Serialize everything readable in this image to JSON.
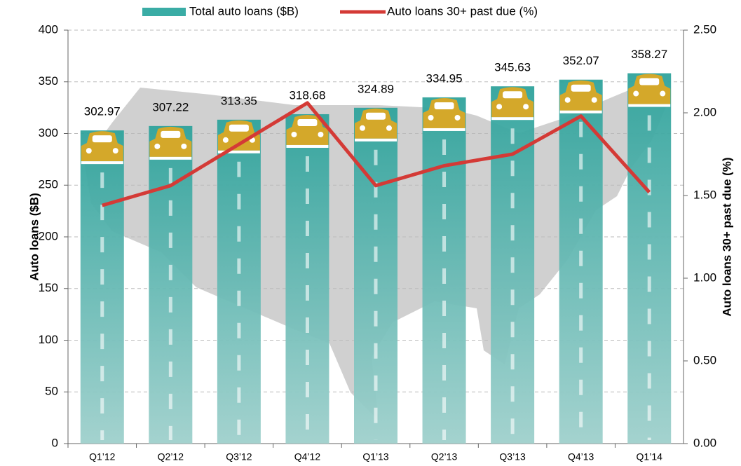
{
  "chart_data": {
    "type": "bar-line",
    "categories": [
      "Q1’12",
      "Q2’12",
      "Q3’12",
      "Q4’12",
      "Q1’13",
      "Q2’13",
      "Q3’13",
      "Q4’13",
      "Q1’14"
    ],
    "series": [
      {
        "name": "Total auto loans ($B)",
        "color": "#3aaca5",
        "values": [
          302.97,
          307.22,
          313.35,
          318.68,
          324.89,
          334.95,
          345.63,
          352.07,
          358.27
        ]
      },
      {
        "name": "Auto loans 30+ past due (%)",
        "color": "#d43a36",
        "axis": "y2",
        "values": [
          1.44,
          1.56,
          1.81,
          2.06,
          1.56,
          1.68,
          1.75,
          1.98,
          1.52
        ]
      }
    ],
    "ylabel": "Auto loans ($B)",
    "y2label": "Auto loans 30+ past due (%)",
    "ylim": [
      0,
      400
    ],
    "yticks": [
      0,
      50,
      100,
      150,
      200,
      250,
      300,
      350,
      400
    ],
    "y2lim": [
      0,
      2.5
    ],
    "y2ticks": [
      {
        "value": 0,
        "label": "0.00"
      },
      {
        "value": 0.5,
        "label": "0.50"
      },
      {
        "value": 1,
        "label": "1.00"
      },
      {
        "value": 1.5,
        "label": "1.50"
      },
      {
        "value": 2,
        "label": "2.00"
      },
      {
        "value": 2.5,
        "label": "2.50"
      }
    ],
    "grid": true,
    "legend": "top"
  }
}
